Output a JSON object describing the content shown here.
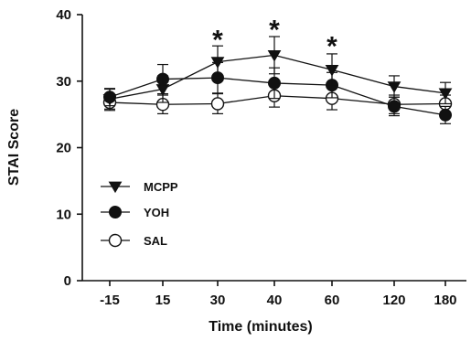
{
  "chart_data": {
    "type": "line",
    "xlabel": "Time (minutes)",
    "ylabel": "STAI Score",
    "categories": [
      "-15",
      "15",
      "30",
      "40",
      "60",
      "120",
      "180"
    ],
    "ylim": [
      0,
      40
    ],
    "yticks": [
      0,
      10,
      20,
      30,
      40
    ],
    "grid": false,
    "legend_position": "middle-left",
    "series": [
      {
        "name": "MCPP",
        "marker": "filled-down-triangle",
        "color": "#111111",
        "values": [
          27.3,
          28.8,
          32.9,
          33.9,
          31.7,
          29.2,
          28.2
        ],
        "errors": [
          1.5,
          2.0,
          2.4,
          2.8,
          2.4,
          1.6,
          1.6
        ]
      },
      {
        "name": "YOH",
        "marker": "filled-circle",
        "color": "#111111",
        "values": [
          27.6,
          30.3,
          30.5,
          29.7,
          29.4,
          26.2,
          24.9
        ],
        "errors": [
          1.3,
          2.2,
          2.3,
          2.3,
          1.9,
          1.4,
          1.3
        ]
      },
      {
        "name": "SAL",
        "marker": "open-circle",
        "color": "#111111",
        "values": [
          26.8,
          26.5,
          26.6,
          27.8,
          27.4,
          26.5,
          26.6
        ],
        "errors": [
          1.2,
          1.4,
          1.5,
          1.7,
          1.7,
          1.4,
          1.3
        ]
      }
    ],
    "annotations": [
      {
        "text": "*",
        "category": "30",
        "y": 36.8
      },
      {
        "text": "*",
        "category": "40",
        "y": 38.3
      },
      {
        "text": "*",
        "category": "60",
        "y": 35.8
      }
    ]
  }
}
